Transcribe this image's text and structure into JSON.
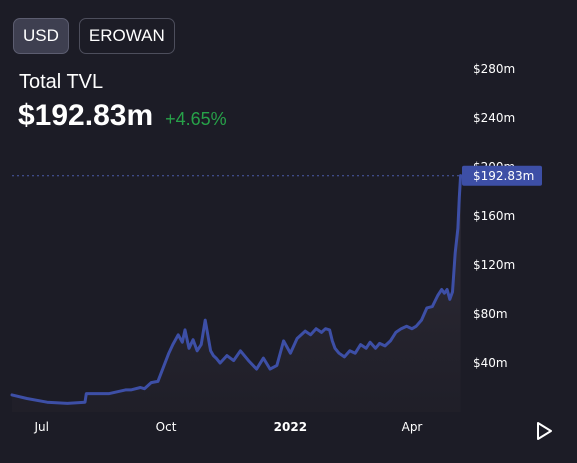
{
  "currency_toggle": {
    "usd_label": "USD",
    "erowan_label": "EROWAN",
    "selected": "USD"
  },
  "header": {
    "title": "Total TVL",
    "value": "$192.83m",
    "change": "+4.65%"
  },
  "colors": {
    "background": "#1c1c26",
    "line": "#3d4fa6",
    "change_positive": "#27a149",
    "price_label_bg": "#3d4fa6"
  },
  "chart_data": {
    "type": "area",
    "title": "Total TVL",
    "ylabel": "",
    "xlabel": "",
    "y_unit": "$m",
    "ylim": [
      0,
      280
    ],
    "y_ticks": [
      "$40m",
      "$80m",
      "$120m",
      "$160m",
      "$200m",
      "$240m",
      "$280m"
    ],
    "y_tick_values": [
      40,
      80,
      120,
      160,
      200,
      240,
      280
    ],
    "x_ticks": [
      {
        "label": "Jul",
        "date": "2021-07-01"
      },
      {
        "label": "Oct",
        "date": "2021-10-01"
      },
      {
        "label": "2022",
        "date": "2022-01-01",
        "bold": true
      },
      {
        "label": "Apr",
        "date": "2022-04-01"
      }
    ],
    "xlim": [
      "2021-06-09",
      "2022-05-08"
    ],
    "last_value_label": "$192.83m",
    "last_value": 192.83,
    "series": [
      {
        "x": [
          "2021-06-09",
          "2021-06-20",
          "2021-07-05",
          "2021-07-20",
          "2021-08-02",
          "2021-08-03",
          "2021-08-20",
          "2021-09-01",
          "2021-09-05",
          "2021-09-12",
          "2021-09-15",
          "2021-09-20",
          "2021-09-25",
          "2021-10-03",
          "2021-10-06",
          "2021-10-10",
          "2021-10-13",
          "2021-10-15",
          "2021-10-18",
          "2021-10-21",
          "2021-10-24",
          "2021-10-27",
          "2021-10-30",
          "2021-11-03",
          "2021-11-05",
          "2021-11-07",
          "2021-11-10",
          "2021-11-15",
          "2021-11-20",
          "2021-11-25",
          "2021-12-01",
          "2021-12-07",
          "2021-12-12",
          "2021-12-17",
          "2021-12-22",
          "2021-12-27",
          "2022-01-01",
          "2022-01-06",
          "2022-01-12",
          "2022-01-16",
          "2022-01-20",
          "2022-01-24",
          "2022-01-27",
          "2022-01-30",
          "2022-02-01",
          "2022-02-03",
          "2022-02-06",
          "2022-02-10",
          "2022-02-14",
          "2022-02-18",
          "2022-02-22",
          "2022-02-26",
          "2022-03-01",
          "2022-03-05",
          "2022-03-08",
          "2022-03-12",
          "2022-03-16",
          "2022-03-20",
          "2022-03-24",
          "2022-03-28",
          "2022-04-01",
          "2022-04-04",
          "2022-04-08",
          "2022-04-12",
          "2022-04-16",
          "2022-04-20",
          "2022-04-23",
          "2022-04-25",
          "2022-04-27",
          "2022-04-29",
          "2022-05-01",
          "2022-05-03",
          "2022-05-05",
          "2022-05-06",
          "2022-05-07"
        ],
        "values": [
          14,
          11,
          8,
          7,
          8,
          15,
          15,
          18,
          18,
          20,
          19,
          24,
          25,
          48,
          55,
          63,
          57,
          67,
          52,
          59,
          50,
          55,
          75,
          50,
          46,
          44,
          40,
          46,
          42,
          50,
          42,
          35,
          44,
          35,
          38,
          58,
          48,
          60,
          66,
          63,
          68,
          65,
          68,
          67,
          58,
          52,
          48,
          45,
          50,
          48,
          55,
          52,
          57,
          52,
          56,
          54,
          58,
          65,
          68,
          70,
          68,
          70,
          75,
          85,
          86,
          95,
          100,
          97,
          100,
          92,
          98,
          130,
          150,
          175,
          193
        ]
      }
    ]
  }
}
